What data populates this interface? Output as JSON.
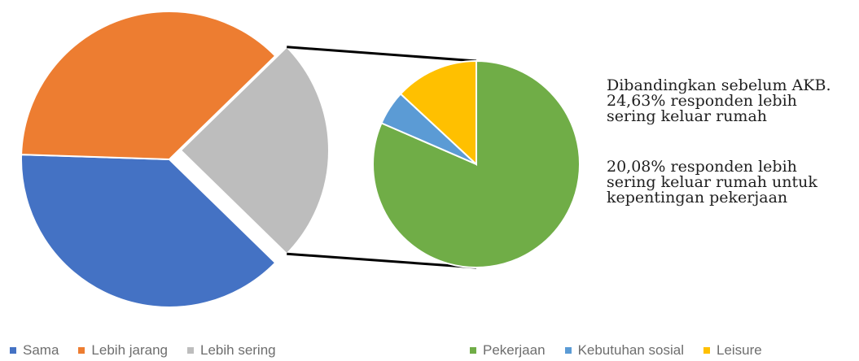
{
  "chart_data": [
    {
      "type": "pie",
      "categories": [
        "Sama",
        "Lebih jarang",
        "Lebih sering"
      ],
      "values": [
        38.2,
        37.17,
        24.63
      ],
      "colors": [
        "#4472C4",
        "#ED7D31",
        "#BDBDBD"
      ],
      "legend": "bottom",
      "exploded_category": "Lebih sering"
    },
    {
      "type": "pie",
      "categories": [
        "Pekerjaan",
        "Kebutuhan sosial",
        "Leisure"
      ],
      "values": [
        20.08,
        1.33,
        3.22
      ],
      "colors": [
        "#70AD47",
        "#5B9BD5",
        "#FFC000"
      ],
      "legend": "bottom",
      "parent_category": "Lebih sering"
    }
  ],
  "annotation": {
    "paragraph_1": "Dibandingkan sebelum AKB. 24,63% responden lebih sering keluar rumah",
    "paragraph_2": "20,08% responden lebih sering keluar rumah untuk kepentingan pekerjaan"
  },
  "legend_left": [
    {
      "label": "Sama",
      "color": "#4472C4"
    },
    {
      "label": "Lebih jarang",
      "color": "#ED7D31"
    },
    {
      "label": "Lebih sering",
      "color": "#BDBDBD"
    }
  ],
  "legend_right": [
    {
      "label": "Pekerjaan",
      "color": "#70AD47"
    },
    {
      "label": "Kebutuhan sosial",
      "color": "#5B9BD5"
    },
    {
      "label": "Leisure",
      "color": "#FFC000"
    }
  ]
}
